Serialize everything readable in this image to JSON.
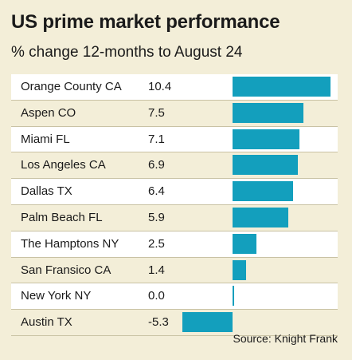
{
  "chart_data": {
    "type": "bar",
    "orientation": "horizontal",
    "title": "US prime market performance",
    "subtitle": "% change 12-months to August 24",
    "categories": [
      "Orange County CA",
      "Aspen CO",
      "Miami FL",
      "Los Angeles CA",
      "Dallas TX",
      "Palm Beach FL",
      "The Hamptons NY",
      "San Fransico CA",
      "New York NY",
      "Austin TX"
    ],
    "value_labels": [
      "10.4",
      "7.5",
      "7.1",
      "6.9",
      "6.4",
      "5.9",
      "2.5",
      "1.4",
      "0.0",
      "-5.3"
    ],
    "values": [
      10.4,
      7.5,
      7.1,
      6.9,
      6.4,
      5.9,
      2.5,
      1.4,
      0.0,
      -5.3
    ],
    "xlim": [
      -5.3,
      10.4
    ],
    "grid": false,
    "source": "Source: Knight Frank",
    "bar_color": "#139fbd",
    "background_color": "#f3eed8"
  }
}
